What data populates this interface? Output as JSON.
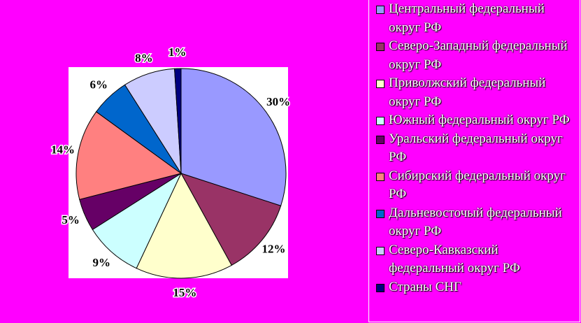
{
  "chart_data": {
    "type": "pie",
    "categories": [
      "Центральный федеральный округ РФ",
      "Северо-Западный федеральный округ РФ",
      "Приволжский федеральный округ РФ",
      "Южный федеральный округ РФ",
      "Уральский федеральный округ РФ",
      "Сибирский федеральный округ РФ",
      " Дальневосточый федеральный округ РФ",
      "Северо-Кавказский федеральный округ РФ",
      "Страны СНГ"
    ],
    "values": [
      30,
      12,
      15,
      9,
      5,
      14,
      6,
      8,
      1
    ],
    "value_labels": [
      "30%",
      "12%",
      "15%",
      "9%",
      "5%",
      "14%",
      "6%",
      "8%",
      "1%"
    ],
    "colors": [
      "#9999ff",
      "#993366",
      "#ffffcc",
      "#ccffff",
      "#660066",
      "#ff8080",
      "#0066cc",
      "#ccccff",
      "#000080"
    ],
    "legend": "right"
  }
}
